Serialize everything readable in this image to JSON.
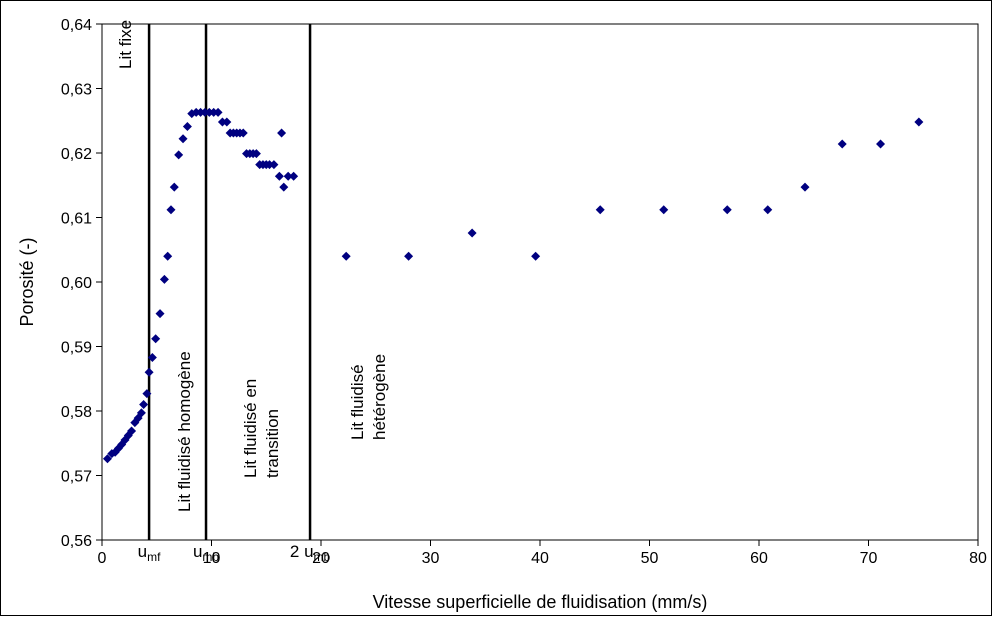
{
  "chart_data": {
    "type": "scatter",
    "title": "",
    "xlabel": "Vitesse superficielle de fluidisation (mm/s)",
    "ylabel": "Porosité (-)",
    "xlim": [
      0,
      80
    ],
    "ylim": [
      0.56,
      0.64
    ],
    "grid": false,
    "x_ticks": [
      0,
      10,
      20,
      30,
      40,
      50,
      60,
      70,
      80
    ],
    "x_tick_labels": [
      "0",
      "10",
      "20",
      "30",
      "40",
      "50",
      "60",
      "70",
      "80"
    ],
    "y_ticks": [
      0.56,
      0.57,
      0.58,
      0.59,
      0.6,
      0.61,
      0.62,
      0.63,
      0.64
    ],
    "y_tick_labels": [
      "0,56",
      "0,57",
      "0,58",
      "0,59",
      "0,60",
      "0,61",
      "0,62",
      "0,63",
      "0,64"
    ],
    "marker_color": "#000080",
    "line_color": "#000000",
    "vertical_lines": [
      {
        "x": 4.3,
        "label_main": "u",
        "label_sub": "mf"
      },
      {
        "x": 9.5,
        "label_main": "u",
        "label_sub": "mb"
      },
      {
        "x": 19.0,
        "label_main": "2 u",
        "label_sub": "mb"
      }
    ],
    "regions": [
      {
        "lines": [
          "Lit fixe"
        ]
      },
      {
        "lines": [
          "Lit fluidisé homogène"
        ]
      },
      {
        "lines": [
          "Lit fluidisé en",
          "transition"
        ]
      },
      {
        "lines": [
          "Lit fluidisé",
          "hétérogène"
        ]
      }
    ],
    "series": [
      {
        "points": [
          [
            0.5,
            0.5726
          ],
          [
            0.9,
            0.5734
          ],
          [
            1.2,
            0.5736
          ],
          [
            1.5,
            0.5742
          ],
          [
            1.8,
            0.5748
          ],
          [
            2.1,
            0.5755
          ],
          [
            2.4,
            0.5762
          ],
          [
            2.7,
            0.5769
          ],
          [
            3.0,
            0.5782
          ],
          [
            3.3,
            0.5789
          ],
          [
            3.6,
            0.5797
          ],
          [
            3.8,
            0.581
          ],
          [
            4.1,
            0.5827
          ],
          [
            4.3,
            0.586
          ],
          [
            4.6,
            0.5883
          ],
          [
            4.9,
            0.5912
          ],
          [
            5.3,
            0.5951
          ],
          [
            5.7,
            0.6004
          ],
          [
            6.0,
            0.604
          ],
          [
            6.3,
            0.6112
          ],
          [
            6.6,
            0.6147
          ],
          [
            7.0,
            0.6197
          ],
          [
            7.4,
            0.6222
          ],
          [
            7.8,
            0.6241
          ],
          [
            8.2,
            0.6261
          ],
          [
            8.6,
            0.6263
          ],
          [
            9.0,
            0.6263
          ],
          [
            9.4,
            0.6263
          ],
          [
            9.8,
            0.6263
          ],
          [
            10.2,
            0.6263
          ],
          [
            10.6,
            0.6263
          ],
          [
            11.0,
            0.6248
          ],
          [
            11.4,
            0.6248
          ],
          [
            11.7,
            0.6231
          ],
          [
            12.0,
            0.6231
          ],
          [
            12.3,
            0.6231
          ],
          [
            12.6,
            0.6231
          ],
          [
            12.9,
            0.6231
          ],
          [
            13.2,
            0.6199
          ],
          [
            13.5,
            0.6199
          ],
          [
            13.8,
            0.6199
          ],
          [
            14.1,
            0.6199
          ],
          [
            14.4,
            0.6182
          ],
          [
            14.7,
            0.6182
          ],
          [
            15.0,
            0.6182
          ],
          [
            15.3,
            0.6182
          ],
          [
            15.7,
            0.6182
          ],
          [
            16.2,
            0.6164
          ],
          [
            16.4,
            0.6231
          ],
          [
            16.6,
            0.6147
          ],
          [
            17.0,
            0.6164
          ],
          [
            17.5,
            0.6164
          ],
          [
            22.3,
            0.604
          ],
          [
            28.0,
            0.604
          ],
          [
            33.8,
            0.6076
          ],
          [
            39.6,
            0.604
          ],
          [
            45.5,
            0.6112
          ],
          [
            51.3,
            0.6112
          ],
          [
            57.1,
            0.6112
          ],
          [
            60.8,
            0.6112
          ],
          [
            64.2,
            0.6147
          ],
          [
            67.6,
            0.6214
          ],
          [
            71.1,
            0.6214
          ],
          [
            74.6,
            0.6248
          ]
        ]
      }
    ]
  }
}
